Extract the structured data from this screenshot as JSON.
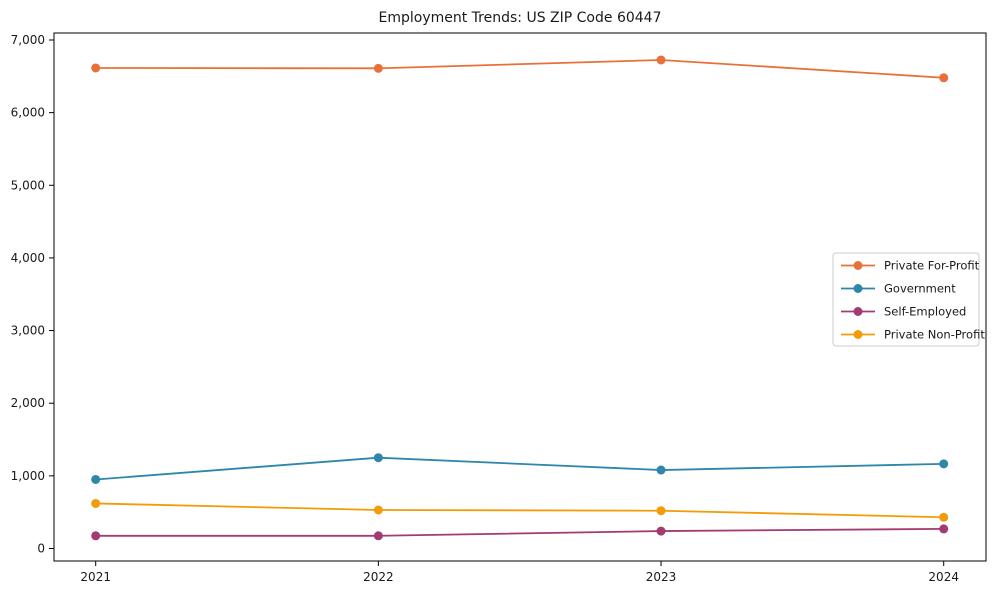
{
  "chart_data": {
    "type": "line",
    "title": "Employment Trends: US ZIP Code 60447",
    "x": [
      2021,
      2022,
      2023,
      2024
    ],
    "x_tick_labels": [
      "2021",
      "2022",
      "2023",
      "2024"
    ],
    "y_ticks": [
      0,
      1000,
      2000,
      3000,
      4000,
      5000,
      6000,
      7000
    ],
    "y_tick_labels": [
      "0",
      "1,000",
      "2,000",
      "3,000",
      "4,000",
      "5,000",
      "6,000",
      "7,000"
    ],
    "ylim": [
      0,
      7000
    ],
    "grid": false,
    "legend_position": "right-center",
    "series": [
      {
        "name": "Private For-Profit",
        "color": "#E8713A",
        "values": [
          6615,
          6610,
          6725,
          6480
        ]
      },
      {
        "name": "Government",
        "color": "#2E86AB",
        "values": [
          950,
          1250,
          1080,
          1165
        ]
      },
      {
        "name": "Self-Employed",
        "color": "#A23B72",
        "values": [
          175,
          175,
          240,
          270
        ]
      },
      {
        "name": "Private Non-Profit",
        "color": "#F39C0A",
        "values": [
          620,
          530,
          520,
          430
        ]
      }
    ]
  },
  "colors": {
    "background": "#ffffff",
    "frame": "#000000",
    "text": "#1a1a1a",
    "legend_border": "#cccccc"
  }
}
